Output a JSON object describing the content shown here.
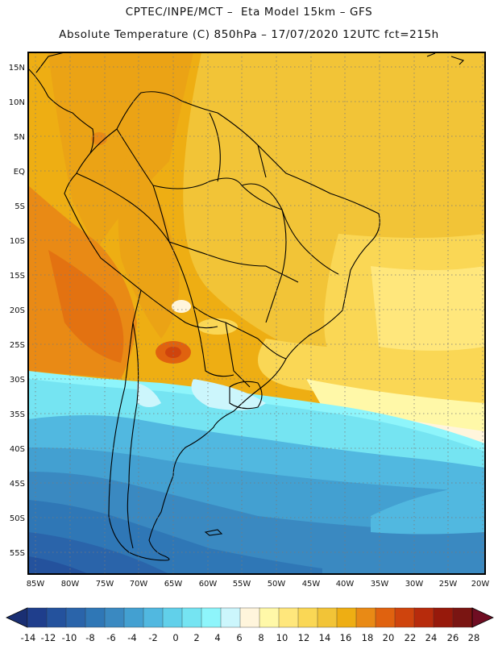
{
  "header": {
    "line1": "CPTEC/INPE/MCT –  Eta Model 15km – GFS",
    "line2": "Absolute Temperature (C) 850hPa – 17/07/2020 12UTC fct=215h"
  },
  "map": {
    "lat_labels": [
      "15N",
      "10N",
      "5N",
      "EQ",
      "5S",
      "10S",
      "15S",
      "20S",
      "25S",
      "30S",
      "35S",
      "40S",
      "45S",
      "50S",
      "55S"
    ],
    "lon_labels": [
      "85W",
      "80W",
      "75W",
      "70W",
      "65W",
      "60W",
      "55W",
      "50W",
      "45W",
      "40W",
      "35W",
      "30W",
      "25W",
      "20W"
    ],
    "region": "South America",
    "graticule": "dotted"
  },
  "colorbar": {
    "labels": [
      "-14",
      "-12",
      "-10",
      "-8",
      "-6",
      "-4",
      "-2",
      "0",
      "2",
      "4",
      "6",
      "8",
      "10",
      "12",
      "14",
      "16",
      "18",
      "20",
      "22",
      "24",
      "26",
      "28"
    ],
    "colors": [
      "#1f3e8c",
      "#24529d",
      "#2a64aa",
      "#2f77b6",
      "#3a89c1",
      "#43a0d1",
      "#51b8e0",
      "#61d0ea",
      "#75e4f2",
      "#8ef5fb",
      "#ccf6fc",
      "#fff5dc",
      "#fff8a8",
      "#ffe77c",
      "#fad755",
      "#f2c437",
      "#eeae13",
      "#e98a15",
      "#e0620f",
      "#cf440d",
      "#b72b0c",
      "#97190b",
      "#7a1512"
    ]
  }
}
